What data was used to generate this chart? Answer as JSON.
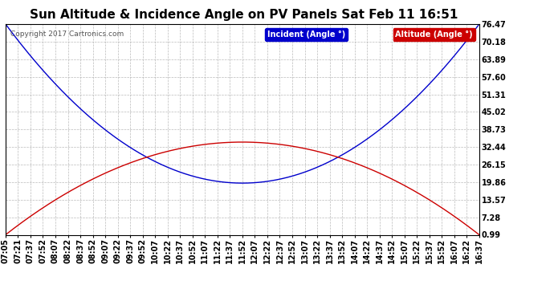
{
  "title": "Sun Altitude & Incidence Angle on PV Panels Sat Feb 11 16:51",
  "copyright": "Copyright 2017 Cartronics.com",
  "legend_labels": [
    "Incident (Angle °)",
    "Altitude (Angle °)"
  ],
  "incident_color": "#0000cc",
  "altitude_color": "#cc0000",
  "yticks": [
    0.99,
    7.28,
    13.57,
    19.86,
    26.15,
    32.44,
    38.73,
    45.02,
    51.31,
    57.6,
    63.89,
    70.18,
    76.47
  ],
  "xtick_labels": [
    "07:05",
    "07:21",
    "07:37",
    "07:52",
    "08:07",
    "08:22",
    "08:37",
    "08:52",
    "09:07",
    "09:22",
    "09:37",
    "09:52",
    "10:07",
    "10:22",
    "10:37",
    "10:52",
    "11:07",
    "11:22",
    "11:37",
    "11:52",
    "12:07",
    "12:22",
    "12:37",
    "12:52",
    "13:07",
    "13:22",
    "13:37",
    "13:52",
    "14:07",
    "14:22",
    "14:37",
    "14:52",
    "15:07",
    "15:22",
    "15:37",
    "15:52",
    "16:07",
    "16:22",
    "16:37"
  ],
  "background_color": "#ffffff",
  "grid_color": "#aaaaaa",
  "title_fontsize": 11,
  "tick_fontsize": 7,
  "copyright_fontsize": 6.5,
  "legend_fontsize": 7,
  "incident_min": 19.5,
  "altitude_max": 34.2,
  "ymin": 0.99,
  "ymax": 76.47
}
